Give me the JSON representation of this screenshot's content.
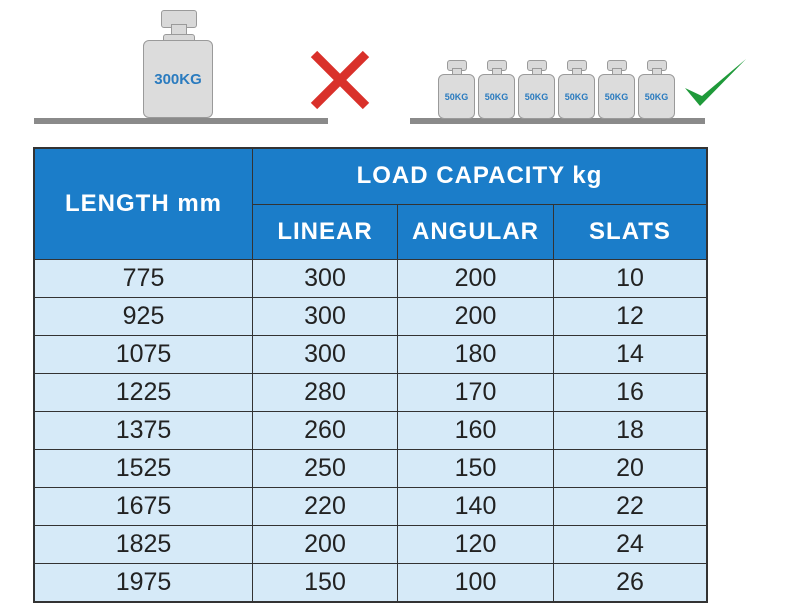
{
  "illustration": {
    "bad": {
      "weight_label": "300KG",
      "mark": "cross-icon",
      "color": "#d9302a"
    },
    "good": {
      "weight_labels": [
        "50KG",
        "50KG",
        "50KG",
        "50KG",
        "50KG",
        "50KG"
      ],
      "mark": "check-icon",
      "color": "#1f9a3a"
    }
  },
  "table": {
    "header": {
      "length": "LENGTH mm",
      "load_capacity": "LOAD CAPACITY kg",
      "linear": "LINEAR",
      "angular": "ANGULAR",
      "slats": "SLATS"
    },
    "rows": [
      [
        "775",
        "300",
        "200",
        "10"
      ],
      [
        "925",
        "300",
        "200",
        "12"
      ],
      [
        "1075",
        "300",
        "180",
        "14"
      ],
      [
        "1225",
        "280",
        "170",
        "16"
      ],
      [
        "1375",
        "260",
        "160",
        "18"
      ],
      [
        "1525",
        "250",
        "150",
        "20"
      ],
      [
        "1675",
        "220",
        "140",
        "22"
      ],
      [
        "1825",
        "200",
        "120",
        "24"
      ],
      [
        "1975",
        "150",
        "100",
        "26"
      ]
    ],
    "header_color": "#1b7dc9",
    "cell_color": "#d6eaf8"
  }
}
